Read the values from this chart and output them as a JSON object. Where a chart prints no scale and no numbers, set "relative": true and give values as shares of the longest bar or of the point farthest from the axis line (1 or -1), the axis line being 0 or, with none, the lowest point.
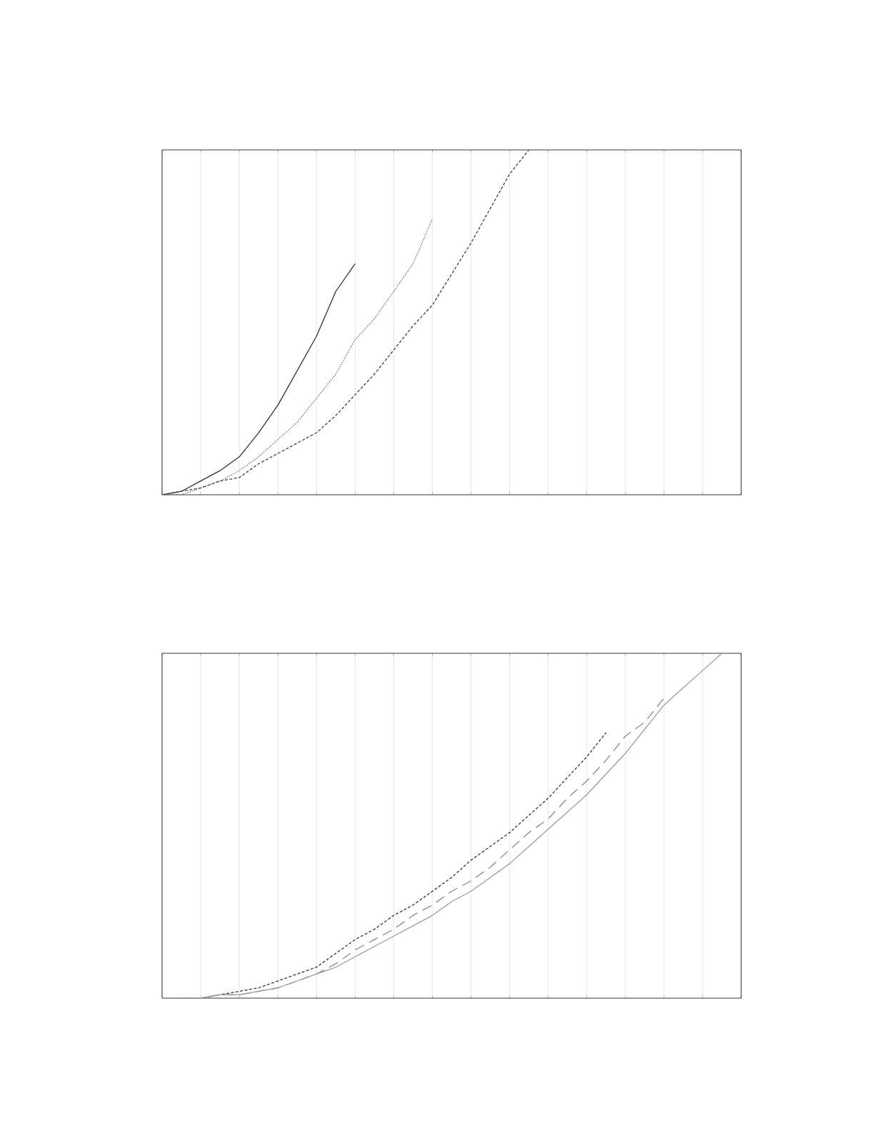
{
  "chart_data": [
    {
      "type": "line",
      "relative": true,
      "grid": "x",
      "marker": "none",
      "categories": [
        null,
        null,
        null,
        null,
        null,
        null,
        null,
        null,
        null,
        null,
        null,
        null,
        null,
        null,
        null,
        null,
        null,
        null,
        null,
        null,
        null,
        null,
        null,
        null,
        null,
        null,
        null,
        null,
        null,
        null,
        null
      ],
      "series": [
        {
          "color": "#303030",
          "line_style": "solid",
          "values": [
            0,
            0.01,
            0.04,
            0.07,
            0.11,
            0.18,
            0.26,
            0.36,
            0.46,
            0.59,
            0.67,
            null,
            null,
            null,
            null,
            null,
            null,
            null,
            null,
            null,
            null,
            null,
            null,
            null,
            null,
            null,
            null,
            null,
            null,
            null,
            null
          ]
        },
        {
          "color": "#555555",
          "line_style": "dotted",
          "values": [
            0,
            0,
            0.02,
            0.04,
            0.07,
            0.11,
            0.16,
            0.21,
            0.28,
            0.35,
            0.45,
            0.51,
            0.59,
            0.67,
            0.8,
            null,
            null,
            null,
            null,
            null,
            null,
            null,
            null,
            null,
            null,
            null,
            null,
            null,
            null,
            null,
            null
          ]
        },
        {
          "color": "#404040",
          "line_style": "dashed",
          "values": [
            0,
            0.01,
            0.02,
            0.04,
            0.05,
            0.09,
            0.12,
            0.15,
            0.18,
            0.23,
            0.29,
            0.35,
            0.42,
            0.49,
            0.55,
            0.64,
            0.73,
            0.83,
            0.93,
            1,
            null,
            null,
            null,
            null,
            null,
            null,
            null,
            null,
            null,
            null,
            null
          ]
        }
      ]
    },
    {
      "type": "line",
      "relative": true,
      "grid": "x",
      "marker": "none",
      "categories": [
        null,
        null,
        null,
        null,
        null,
        null,
        null,
        null,
        null,
        null,
        null,
        null,
        null,
        null,
        null,
        null,
        null,
        null,
        null,
        null,
        null,
        null,
        null,
        null,
        null,
        null,
        null,
        null,
        null,
        null,
        null
      ],
      "series": [
        {
          "color": "#333333",
          "line_style": "dashed",
          "values": [
            0,
            0,
            0,
            0.01,
            0.02,
            0.03,
            0.05,
            0.07,
            0.09,
            0.13,
            0.17,
            0.2,
            0.24,
            0.27,
            0.31,
            0.35,
            0.4,
            0.44,
            0.48,
            0.53,
            0.58,
            0.64,
            0.7,
            0.77,
            null,
            null,
            null,
            null,
            null,
            null,
            null
          ]
        },
        {
          "color": "#8a8a8a",
          "line_style": "longdashed",
          "values": [
            0,
            0,
            0,
            0.01,
            0.01,
            0.02,
            0.03,
            0.05,
            0.07,
            0.1,
            0.14,
            0.17,
            0.2,
            0.24,
            0.27,
            0.31,
            0.34,
            0.38,
            0.43,
            0.48,
            0.52,
            0.58,
            0.63,
            0.69,
            0.76,
            0.8,
            0.87,
            null,
            null,
            null,
            null
          ]
        },
        {
          "color": "#9c9c9c",
          "line_style": "solid",
          "values": [
            0,
            0,
            0,
            0.01,
            0.01,
            0.02,
            0.03,
            0.05,
            0.07,
            0.09,
            0.12,
            0.15,
            0.18,
            0.21,
            0.24,
            0.28,
            0.31,
            0.35,
            0.39,
            0.44,
            0.49,
            0.54,
            0.59,
            0.65,
            0.71,
            0.78,
            0.85,
            0.9,
            0.95,
            1,
            null
          ]
        }
      ]
    }
  ]
}
